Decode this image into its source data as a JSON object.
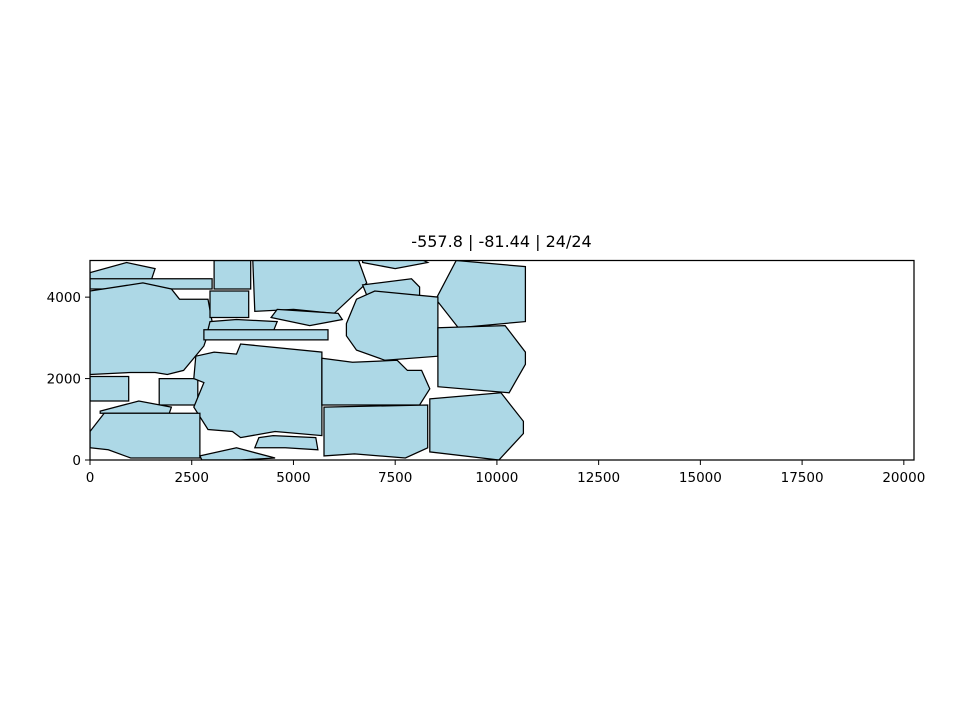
{
  "chart_data": {
    "type": "polygon-layout",
    "title": "-557.8 | -81.44 | 24/24",
    "xlabel": "",
    "ylabel": "",
    "xlim": [
      0,
      20250
    ],
    "ylim": [
      0,
      4900
    ],
    "xticks": [
      0,
      2500,
      5000,
      7500,
      10000,
      12500,
      15000,
      17500,
      20000
    ],
    "yticks": [
      0,
      2000,
      4000
    ],
    "xtick_labels": [
      "0",
      "2500",
      "5000",
      "7500",
      "10000",
      "12500",
      "15000",
      "17500",
      "20000"
    ],
    "ytick_labels": [
      "0",
      "2000",
      "4000"
    ],
    "fill_color": "#add8e6",
    "edge_color": "#000000",
    "grid": false,
    "polygons": [
      [
        [
          0,
          4600
        ],
        [
          900,
          4850
        ],
        [
          1600,
          4700
        ],
        [
          1500,
          4400
        ],
        [
          0,
          4400
        ]
      ],
      [
        [
          0,
          4450
        ],
        [
          3000,
          4450
        ],
        [
          3000,
          4200
        ],
        [
          0,
          4200
        ]
      ],
      [
        [
          3050,
          4900
        ],
        [
          3950,
          4900
        ],
        [
          3950,
          4200
        ],
        [
          3050,
          4200
        ]
      ],
      [
        [
          4000,
          4900
        ],
        [
          6600,
          4900
        ],
        [
          6800,
          4350
        ],
        [
          6000,
          3600
        ],
        [
          5000,
          3700
        ],
        [
          4050,
          3650
        ]
      ],
      [
        [
          6700,
          4850
        ],
        [
          7500,
          4700
        ],
        [
          8300,
          4850
        ],
        [
          8100,
          4950
        ],
        [
          6700,
          4950
        ]
      ],
      [
        [
          6700,
          4300
        ],
        [
          6800,
          4050
        ],
        [
          8100,
          4000
        ],
        [
          8100,
          4250
        ],
        [
          7900,
          4450
        ]
      ],
      [
        [
          9000,
          4900
        ],
        [
          10700,
          4750
        ],
        [
          10700,
          3400
        ],
        [
          9050,
          3250
        ],
        [
          8500,
          3950
        ]
      ],
      [
        [
          0,
          4150
        ],
        [
          1300,
          4350
        ],
        [
          2000,
          4200
        ],
        [
          2200,
          3950
        ],
        [
          2900,
          3950
        ],
        [
          3000,
          3400
        ],
        [
          2800,
          2800
        ],
        [
          2300,
          2200
        ],
        [
          1900,
          2100
        ],
        [
          1600,
          2150
        ],
        [
          1000,
          2150
        ],
        [
          0,
          2100
        ]
      ],
      [
        [
          2950,
          4150
        ],
        [
          3900,
          4150
        ],
        [
          3900,
          3500
        ],
        [
          2950,
          3500
        ]
      ],
      [
        [
          2900,
          3200
        ],
        [
          2950,
          3400
        ],
        [
          3600,
          3450
        ],
        [
          4600,
          3400
        ],
        [
          4500,
          3150
        ],
        [
          3600,
          3100
        ]
      ],
      [
        [
          4450,
          3500
        ],
        [
          5400,
          3300
        ],
        [
          6200,
          3450
        ],
        [
          6100,
          3600
        ],
        [
          4600,
          3700
        ]
      ],
      [
        [
          2800,
          3200
        ],
        [
          5850,
          3200
        ],
        [
          5850,
          2950
        ],
        [
          2800,
          2950
        ]
      ],
      [
        [
          6300,
          3350
        ],
        [
          6550,
          3950
        ],
        [
          7000,
          4150
        ],
        [
          8550,
          4000
        ],
        [
          8550,
          2550
        ],
        [
          7250,
          2450
        ],
        [
          6550,
          2700
        ],
        [
          6300,
          3050
        ]
      ],
      [
        [
          8550,
          3250
        ],
        [
          10200,
          3300
        ],
        [
          10700,
          2650
        ],
        [
          10700,
          2350
        ],
        [
          10300,
          1650
        ],
        [
          8550,
          1800
        ]
      ],
      [
        [
          0,
          2050
        ],
        [
          950,
          2050
        ],
        [
          950,
          1450
        ],
        [
          0,
          1450
        ]
      ],
      [
        [
          1700,
          2000
        ],
        [
          2650,
          2000
        ],
        [
          2650,
          1350
        ],
        [
          1700,
          1350
        ]
      ],
      [
        [
          2600,
          2550
        ],
        [
          3050,
          2650
        ],
        [
          3600,
          2600
        ],
        [
          3700,
          2850
        ],
        [
          5700,
          2650
        ],
        [
          5700,
          600
        ],
        [
          4550,
          700
        ],
        [
          3700,
          550
        ],
        [
          3500,
          700
        ],
        [
          2900,
          750
        ],
        [
          2550,
          1300
        ],
        [
          2800,
          1900
        ],
        [
          2550,
          2000
        ]
      ],
      [
        [
          5700,
          2500
        ],
        [
          6450,
          2400
        ],
        [
          7550,
          2450
        ],
        [
          7800,
          2200
        ],
        [
          8150,
          2200
        ],
        [
          8350,
          1750
        ],
        [
          8100,
          1350
        ],
        [
          5700,
          1350
        ]
      ],
      [
        [
          8350,
          1500
        ],
        [
          10100,
          1650
        ],
        [
          10650,
          950
        ],
        [
          10650,
          650
        ],
        [
          10050,
          0
        ],
        [
          8350,
          200
        ]
      ],
      [
        [
          250,
          1200
        ],
        [
          1200,
          1450
        ],
        [
          2000,
          1300
        ],
        [
          1950,
          1150
        ],
        [
          250,
          1150
        ]
      ],
      [
        [
          0,
          700
        ],
        [
          350,
          1150
        ],
        [
          2700,
          1150
        ],
        [
          2700,
          50
        ],
        [
          1000,
          50
        ],
        [
          450,
          250
        ],
        [
          0,
          300
        ]
      ],
      [
        [
          5750,
          1300
        ],
        [
          8300,
          1350
        ],
        [
          8300,
          300
        ],
        [
          7750,
          50
        ],
        [
          6500,
          150
        ],
        [
          5750,
          100
        ]
      ],
      [
        [
          4150,
          550
        ],
        [
          4500,
          600
        ],
        [
          5550,
          550
        ],
        [
          5600,
          250
        ],
        [
          4800,
          300
        ],
        [
          4050,
          300
        ]
      ],
      [
        [
          2700,
          100
        ],
        [
          3600,
          300
        ],
        [
          4550,
          50
        ],
        [
          3700,
          0
        ],
        [
          2750,
          0
        ]
      ]
    ]
  }
}
